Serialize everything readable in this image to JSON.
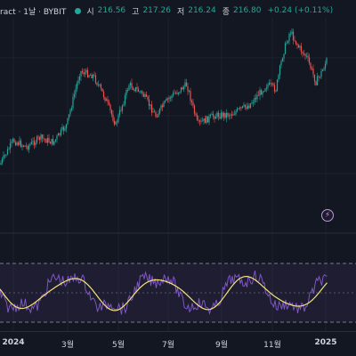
{
  "legend": {
    "symbol": "ract · 1날 · BYBIT",
    "open_label": "시",
    "open_value": "216.56",
    "high_label": "고",
    "high_value": "217.26",
    "low_label": "저",
    "low_value": "216.24",
    "close_label": "종",
    "close_value": "216.80",
    "change": "+0.24 (+0.11%)"
  },
  "time_axis": {
    "labels": [
      "2024",
      "3월",
      "5월",
      "7월",
      "9월",
      "11월",
      "2025"
    ]
  },
  "colors": {
    "background": "#131722",
    "up": "#26a69a",
    "down": "#ef5350",
    "rsi_line": "#7e57c2",
    "rsi_ma": "#f5e37a",
    "rsi_band": "#7e57c2"
  },
  "icons": {
    "alert": "lightning-icon"
  },
  "alert_glyph": "⚡"
}
